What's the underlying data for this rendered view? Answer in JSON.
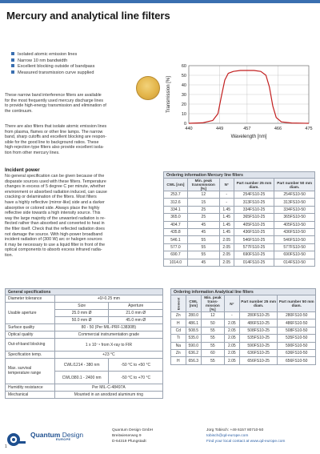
{
  "title": "Mercury and analytical line filters",
  "bullets": [
    "Isolated atomic emission lines",
    "Narrow 10 nm bandwidth",
    "Excellent blocking outside of bandpass",
    "Measured transmission curve supplied"
  ],
  "intro": [
    "These narrow band interference filters are available",
    "for the most frequently used mercury discharge lines",
    "to provide high-energy transmission and elimination of",
    "the continuum."
  ],
  "analytical": [
    "There are also filters that isolate atomic emission lines",
    "from plasma, flames or other line lamps. The narrow",
    "band, sharp cutoffs and excellent blocking are respon-",
    "sible for the good line to background ratios. These",
    "high-rejection type filters also provide excellent isola-",
    "tion from other mercury lines."
  ],
  "incident": {
    "heading": "Incident power",
    "lines": [
      "No general specification can be given because of the",
      "disparate sources used with these filters. Temperature",
      "changes in excess of 5 degree C per minute, whether",
      "environment or absorbed radiation induced, can cause",
      "cracking or delamination of the filters. Most filters",
      "have a highly reflective (mirror-like) side and a darker",
      "absorptive or colored side. Always place the highly",
      "reflective side towards a high intensity source. This",
      "way the large majority of the unwanted radiation is re-",
      "flected rather than absorbed and converted to heat in",
      "the filter itself. Check that the reflected radiation does",
      "not damage the source. With high-power broadband",
      "incident radiation of (300 W) arc or halogen sources",
      "it may be necessary to use a liquid filter in front of the",
      "optical components to absorb excess infrared radia-",
      "tion."
    ]
  },
  "chart_data": {
    "type": "line",
    "title": "",
    "xlabel": "Wavelength [nm]",
    "ylabel": "Transmission [%]",
    "xticks": [
      440,
      449,
      457,
      466,
      475
    ],
    "yticks": [
      0,
      10,
      20,
      30,
      40,
      50,
      60
    ],
    "xlim": [
      440,
      475
    ],
    "ylim": [
      0,
      60
    ],
    "grid": true,
    "series": [
      {
        "color": "#c21f1f",
        "x": [
          440,
          444,
          447,
          448.5,
          449.5,
          450.5,
          451.5,
          453,
          455,
          457,
          459,
          461,
          462.5,
          463.5,
          464.5,
          465.5,
          467,
          470,
          475
        ],
        "y": [
          0,
          0.5,
          3,
          10,
          28,
          45,
          52,
          54,
          55,
          55,
          55,
          54,
          50,
          38,
          18,
          6,
          1.5,
          0.3,
          0
        ]
      }
    ]
  },
  "mercury_table": {
    "caption": "Ordering information Mercury line filters",
    "headers": [
      "CWL [nm]",
      "Min. peak transmission [%]",
      "N°",
      "Part number 25 mm diam.",
      "Part number 50 mm diam."
    ],
    "rows": [
      [
        "253.7",
        "12",
        "-",
        "254FS10-25",
        "254FS10-50"
      ],
      [
        "312.6",
        "15",
        "-",
        "313FS10-25",
        "313FS10-50"
      ],
      [
        "334.1",
        "25",
        "1.45",
        "334FS10-25",
        "334FS10-50"
      ],
      [
        "365.0",
        "25",
        "1.45",
        "365FS10-25",
        "365FS10-50"
      ],
      [
        "404.7",
        "45",
        "1.45",
        "405FS10-25",
        "405FS10-50"
      ],
      [
        "435.8",
        "45",
        "1.45",
        "436FS10-25",
        "436FS10-50"
      ],
      [
        "546.1",
        "55",
        "2.05",
        "546FS10-25",
        "546FS10-50"
      ],
      [
        "577.0",
        "55",
        "2.05",
        "577FS10-25",
        "577FS10-50"
      ],
      [
        "690.7",
        "55",
        "2.05",
        "690FS10-25",
        "690FS10-50"
      ],
      [
        "1014.0",
        "45",
        "2.05",
        "014FS10-25",
        "014FS10-50"
      ]
    ]
  },
  "analytical_table": {
    "caption": "Ordering information Analytical line filters",
    "headers": [
      "Element",
      "CWL [nm]",
      "Min. peak trans-mission [%]",
      "N°",
      "Part number 25 mm diam.",
      "Part number 50 mm diam."
    ],
    "rows": [
      [
        "Zn",
        "280.0",
        "12",
        "-",
        "280FS10-25",
        "280FS10-50"
      ],
      [
        "H",
        "486.1",
        "50",
        "2.05",
        "486FS10-25",
        "486FS10-50"
      ],
      [
        "Cd",
        "508.5",
        "55",
        "2.05",
        "508FS10-25",
        "508FS10-50"
      ],
      [
        "Ti",
        "535.0",
        "55",
        "2.05",
        "535FS10-25",
        "535FS10-50"
      ],
      [
        "Na",
        "590.0",
        "55",
        "2.05",
        "590FS10-25",
        "590FS10-50"
      ],
      [
        "Zn",
        "636.2",
        "60",
        "2.05",
        "636FS10-25",
        "636FS10-50"
      ],
      [
        "H",
        "656.3",
        "55",
        "2.05",
        "656FS10-25",
        "656FS10-50"
      ]
    ]
  },
  "specs": {
    "caption": "General specifications",
    "diameter_label": "Diameter tolerance",
    "diameter_value": "+0/-0.25 mm",
    "aperture_label": "Usable aperture",
    "size_head": "Size",
    "aperture_head": "Aperture",
    "apertures": [
      [
        "25.0 mm Ø",
        "21.0 mm Ø"
      ],
      [
        "50.0 mm Ø",
        "45.0 mm Ø"
      ]
    ],
    "surface_label": "Surface quality",
    "surface_value": "80 - 50 (Per MIL-PRF-13830B)",
    "optical_label": "Optical quality",
    "optical_value": "Commercial instrumentation grade",
    "oob_label": "Out-of-band blocking",
    "oob_value": "1 x 10⁻⁴ from X-ray to FIR",
    "spec_temp_label": "Specification temp.",
    "spec_temp_value": "+23 °C",
    "survival_label": "Max. survival temperature range",
    "survival_rows": [
      [
        "CWL/1214 - 380 nm",
        "-50 °C to +50 °C"
      ],
      [
        "CWL/380.1 - 2400 nm",
        "-50 °C to +70 °C"
      ]
    ],
    "humidity_label": "Humidity resistance",
    "humidity_value": "Per MIL-C-48497A",
    "mechanical_label": "Mechanical",
    "mechanical_value": "Mounted in an anodized aluminum ring"
  },
  "footer": {
    "brand_a": "Quantum",
    "brand_b": "Design",
    "brand_sub": "EUROPE",
    "page": "1",
    "col1": [
      "Quantum Design GmbH",
      "Breitwieserweg 9",
      "D-64319 Pfungstadt"
    ],
    "col2": [
      "Jürg Tobisch: +49 6157 80710-50",
      "tobisch@qd-europe.com"
    ],
    "col2_link": "Find your local contact at www.qd-europe.com"
  },
  "colors": {
    "accent": "#3a6fb0",
    "curve": "#c21f1f",
    "brand": "#1e4f8f"
  }
}
